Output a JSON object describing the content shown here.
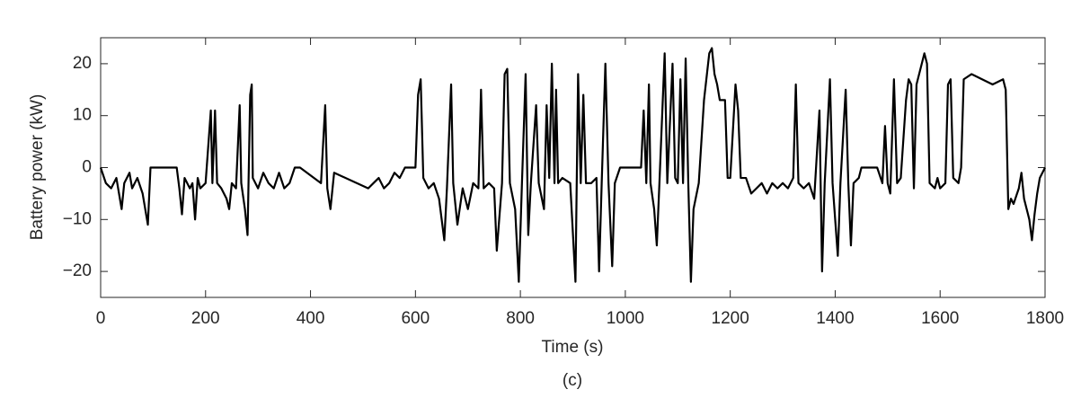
{
  "chart_data": {
    "type": "line",
    "caption": "(c)",
    "xlabel": "Time (s)",
    "ylabel": "Battery power (kW)",
    "x": [
      0,
      10,
      20,
      30,
      40,
      45,
      55,
      60,
      70,
      80,
      90,
      95,
      100,
      145,
      150,
      155,
      160,
      170,
      175,
      180,
      185,
      190,
      200,
      210,
      213,
      218,
      222,
      230,
      240,
      245,
      250,
      258,
      265,
      268,
      275,
      280,
      285,
      288,
      290,
      300,
      310,
      320,
      330,
      340,
      350,
      360,
      370,
      380,
      420,
      428,
      432,
      438,
      445,
      510,
      520,
      530,
      540,
      550,
      560,
      570,
      580,
      600,
      605,
      610,
      615,
      625,
      635,
      645,
      655,
      660,
      668,
      672,
      680,
      690,
      700,
      710,
      720,
      725,
      730,
      740,
      750,
      755,
      765,
      770,
      775,
      780,
      790,
      797,
      803,
      810,
      815,
      820,
      830,
      835,
      845,
      850,
      855,
      860,
      865,
      868,
      872,
      880,
      895,
      905,
      910,
      915,
      920,
      925,
      935,
      945,
      950,
      955,
      962,
      968,
      975,
      980,
      990,
      1000,
      1030,
      1035,
      1040,
      1045,
      1048,
      1055,
      1060,
      1065,
      1075,
      1080,
      1090,
      1095,
      1100,
      1105,
      1110,
      1115,
      1120,
      1125,
      1130,
      1140,
      1150,
      1160,
      1165,
      1170,
      1175,
      1180,
      1190,
      1195,
      1200,
      1210,
      1215,
      1220,
      1230,
      1240,
      1250,
      1260,
      1270,
      1280,
      1290,
      1300,
      1310,
      1320,
      1325,
      1330,
      1340,
      1350,
      1360,
      1370,
      1375,
      1380,
      1390,
      1395,
      1405,
      1410,
      1420,
      1425,
      1430,
      1435,
      1445,
      1450,
      1480,
      1490,
      1495,
      1500,
      1505,
      1512,
      1518,
      1525,
      1535,
      1540,
      1545,
      1550,
      1555,
      1560,
      1570,
      1575,
      1580,
      1590,
      1595,
      1600,
      1610,
      1615,
      1620,
      1625,
      1635,
      1640,
      1645,
      1660,
      1680,
      1700,
      1720,
      1725,
      1730,
      1735,
      1740,
      1750,
      1755,
      1760,
      1770,
      1775,
      1780,
      1785,
      1790,
      1800
    ],
    "series": [
      {
        "name": "Battery power",
        "color": "#000000",
        "values": [
          0,
          -3,
          -4,
          -2,
          -8,
          -3,
          -1,
          -4,
          -2,
          -5,
          -11,
          0,
          0,
          0,
          -4,
          -9,
          -2,
          -4,
          -3,
          -10,
          -2,
          -4,
          -3,
          11,
          -3,
          11,
          -3,
          -4,
          -6,
          -8,
          -3,
          -4,
          12,
          -3,
          -8,
          -13,
          14,
          16,
          -2,
          -4,
          -1,
          -3,
          -4,
          -1,
          -4,
          -3,
          0,
          0,
          -3,
          12,
          -4,
          -8,
          -1,
          -4,
          -3,
          -2,
          -4,
          -3,
          -1,
          -2,
          0,
          0,
          14,
          17,
          -2,
          -4,
          -3,
          -6,
          -14,
          -4,
          16,
          -3,
          -11,
          -4,
          -8,
          -3,
          -4,
          15,
          -4,
          -3,
          -4,
          -16,
          -3,
          18,
          19,
          -3,
          -8,
          -22,
          -3,
          18,
          -13,
          -3,
          12,
          -3,
          -8,
          12,
          -2,
          20,
          -3,
          15,
          -3,
          -2,
          -3,
          -22,
          18,
          -3,
          14,
          -3,
          -3,
          -2,
          -20,
          -3,
          20,
          -3,
          -19,
          -3,
          0,
          0,
          0,
          11,
          -3,
          16,
          -3,
          -8,
          -15,
          -3,
          22,
          -3,
          20,
          -2,
          -3,
          17,
          -3,
          21,
          -3,
          -22,
          -8,
          -3,
          13,
          22,
          23,
          18,
          16,
          13,
          13,
          -2,
          -2,
          16,
          11,
          -2,
          -2,
          -5,
          -4,
          -3,
          -5,
          -3,
          -4,
          -3,
          -4,
          -2,
          16,
          -3,
          -4,
          -3,
          -6,
          11,
          -20,
          -3,
          17,
          -3,
          -17,
          -3,
          15,
          -3,
          -15,
          -3,
          -2,
          0,
          0,
          -3,
          8,
          -3,
          -5,
          17,
          -3,
          -2,
          13,
          17,
          16,
          -4,
          16,
          18,
          22,
          20,
          -3,
          -4,
          -2,
          -4,
          -3,
          16,
          17,
          -2,
          -3,
          0,
          17,
          18,
          17,
          16,
          17,
          15,
          -8,
          -6,
          -7,
          -4,
          -1,
          -6,
          -10,
          -14,
          -9,
          -5,
          -2,
          0
        ]
      }
    ],
    "xlim": [
      0,
      1800
    ],
    "xticks": [
      0,
      200,
      400,
      600,
      800,
      1000,
      1200,
      1400,
      1600,
      1800
    ],
    "ylim": [
      -25,
      25
    ],
    "yticks": [
      {
        "value": -20,
        "label": "−20"
      },
      {
        "value": -10,
        "label": "−10"
      },
      0,
      10,
      20
    ]
  }
}
